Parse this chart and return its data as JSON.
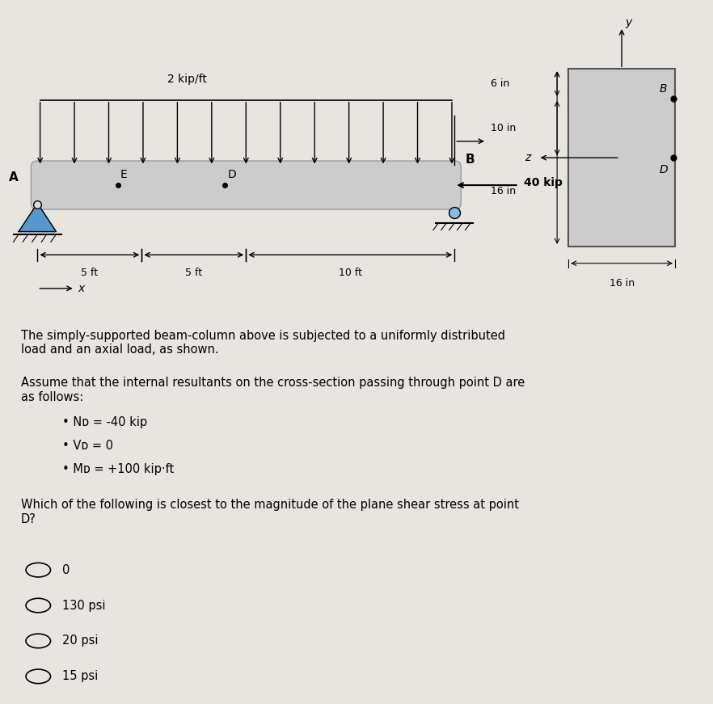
{
  "bg_color": "#e8e4df",
  "title_distributed_load": "2 kip/ft",
  "beam_label_A": "A",
  "beam_label_B": "B",
  "point_E": "E",
  "point_D": "D",
  "axial_load": "40 kip",
  "dim_5ft_1": "5 ft",
  "dim_5ft_2": "5 ft",
  "dim_10ft": "10 ft",
  "dim_x": "x",
  "cross_6in": "6 in",
  "cross_10in": "10 in",
  "cross_16in_h": "16 in",
  "cross_16in_w": "16 in",
  "cross_label_B": "B",
  "cross_label_D": "D",
  "cross_axis_y": "y",
  "cross_axis_z": "z",
  "para1": "The simply-supported beam-column above is subjected to a uniformly distributed\nload and an axial load, as shown.",
  "para2": "Assume that the internal resultants on the cross-section passing through point D are\nas follows:",
  "bullet1": "Nᴅ = -40 kip",
  "bullet2": "Vᴅ = 0",
  "bullet3": "Mᴅ = +100 kip·ft",
  "question": "Which of the following is closest to the magnitude of the plane shear stress at point\nD?",
  "option0": "0",
  "option130": "130 psi",
  "option20": "20 psi",
  "option15": "15 psi"
}
